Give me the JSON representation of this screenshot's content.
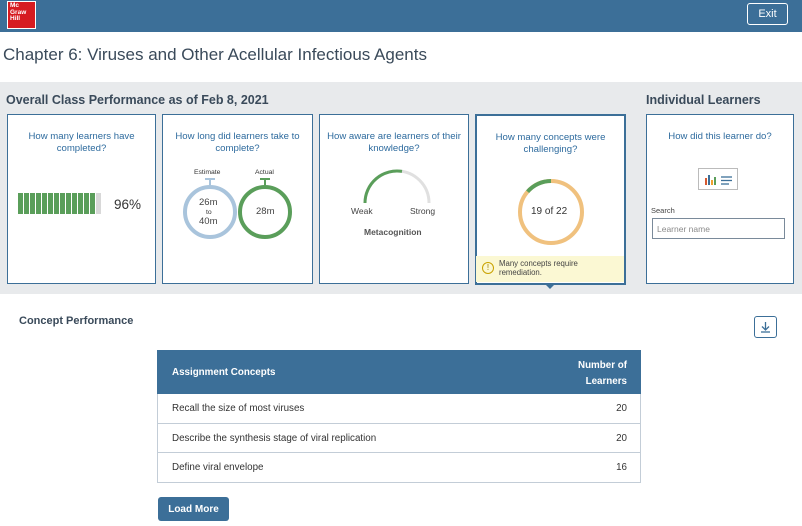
{
  "header": {
    "logo": {
      "line1": "Mc",
      "line2": "Graw",
      "line3": "Hill"
    },
    "exit_label": "Exit"
  },
  "chapter_title": "Chapter 6: Viruses and Other Acellular Infectious Agents",
  "class_performance": {
    "heading": "Overall Class Performance as of Feb 8, 2021",
    "completion": {
      "question": "How many learners have completed?",
      "percent_label": "96%",
      "percent_value": 96
    },
    "time": {
      "question": "How long did learners take to complete?",
      "estimate_label": "Estimate",
      "actual_label": "Actual",
      "estimate_min": "26m",
      "estimate_to": "to",
      "estimate_max": "40m",
      "actual_value": "28m"
    },
    "awareness": {
      "question": "How aware are learners of their knowledge?",
      "weak_label": "Weak",
      "strong_label": "Strong",
      "caption": "Metacognition",
      "level_fraction": 0.55
    },
    "concepts": {
      "question": "How many concepts were challenging?",
      "value_label": "19 of 22",
      "challenging": 19,
      "total": 22,
      "warning": "Many concepts require remediation."
    }
  },
  "individual": {
    "heading": "Individual Learners",
    "question": "How did this learner do?",
    "search_label": "Search",
    "search_placeholder": "Learner name"
  },
  "concept_performance": {
    "title": "Concept Performance",
    "columns": {
      "concept": "Assignment Concepts",
      "count_line1": "Number of",
      "count_line2": "Learners"
    },
    "rows": [
      {
        "concept": "Recall the size of most viruses",
        "count": "20"
      },
      {
        "concept": "Describe the synthesis stage of viral replication",
        "count": "20"
      },
      {
        "concept": "Define viral envelope",
        "count": "16"
      }
    ],
    "load_more_label": "Load More"
  },
  "colors": {
    "brand": "#3c6f98",
    "logo_red": "#d61b21",
    "green": "#5a9e5a",
    "estimate_ring": "#a9c4dc",
    "concept_ring": "#f0c17e",
    "warning_bg": "#fbf8d3"
  },
  "icons": [
    "download-icon",
    "bar-chart-icon",
    "list-icon",
    "warning-icon"
  ]
}
